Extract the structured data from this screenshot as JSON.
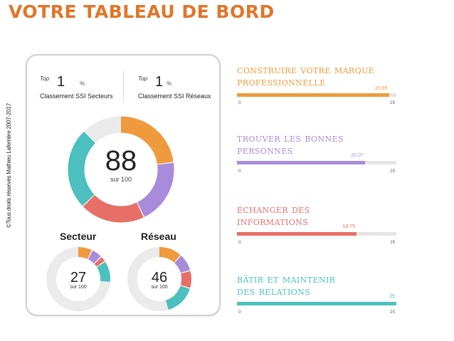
{
  "title": "VOTRE TABLEAU DE BORD",
  "copyright": "©Tous droits réservés Mathieu Laferrière 2007-2017",
  "card": {
    "rank_left": {
      "top_label": "Top",
      "value": "1",
      "unit": "%",
      "label": "Classement SSI Secteurs"
    },
    "rank_right": {
      "top_label": "Top",
      "value": "1",
      "unit": "%",
      "label": "Classement SSI Réseaux"
    },
    "main_score": {
      "value": "88",
      "sub": "sur 100"
    },
    "secteur": {
      "label": "Secteur",
      "value": "27",
      "sub": "sur 100"
    },
    "reseau": {
      "label": "Réseau",
      "value": "46",
      "sub": "sur 100"
    }
  },
  "donut_colors": {
    "orange": "#ef9a3c",
    "purple": "#a98bdb",
    "red": "#e86f68",
    "teal": "#4cbfbf",
    "track": "#ebebeb"
  },
  "metrics": [
    {
      "title": "Construire votre marque\nprofessionnelle",
      "value": 23.85,
      "value_label": "23,85",
      "min_label": "0",
      "max_label": "25",
      "max": 25,
      "color": "#ef9a3c"
    },
    {
      "title": "Trouver les bonnes\npersonnes",
      "value": 20.07,
      "value_label": "20,07",
      "min_label": "0",
      "max_label": "25",
      "max": 25,
      "color": "#a98bdb"
    },
    {
      "title": "Échanger des\ninformations",
      "value": 18.75,
      "value_label": "18,75",
      "min_label": "0",
      "max_label": "25",
      "max": 25,
      "color": "#e86f68"
    },
    {
      "title": "Bâtir et maintenir\ndes relations",
      "value": 25,
      "value_label": "25",
      "min_label": "0",
      "max_label": "25",
      "max": 25,
      "color": "#4cbfbf"
    }
  ]
}
